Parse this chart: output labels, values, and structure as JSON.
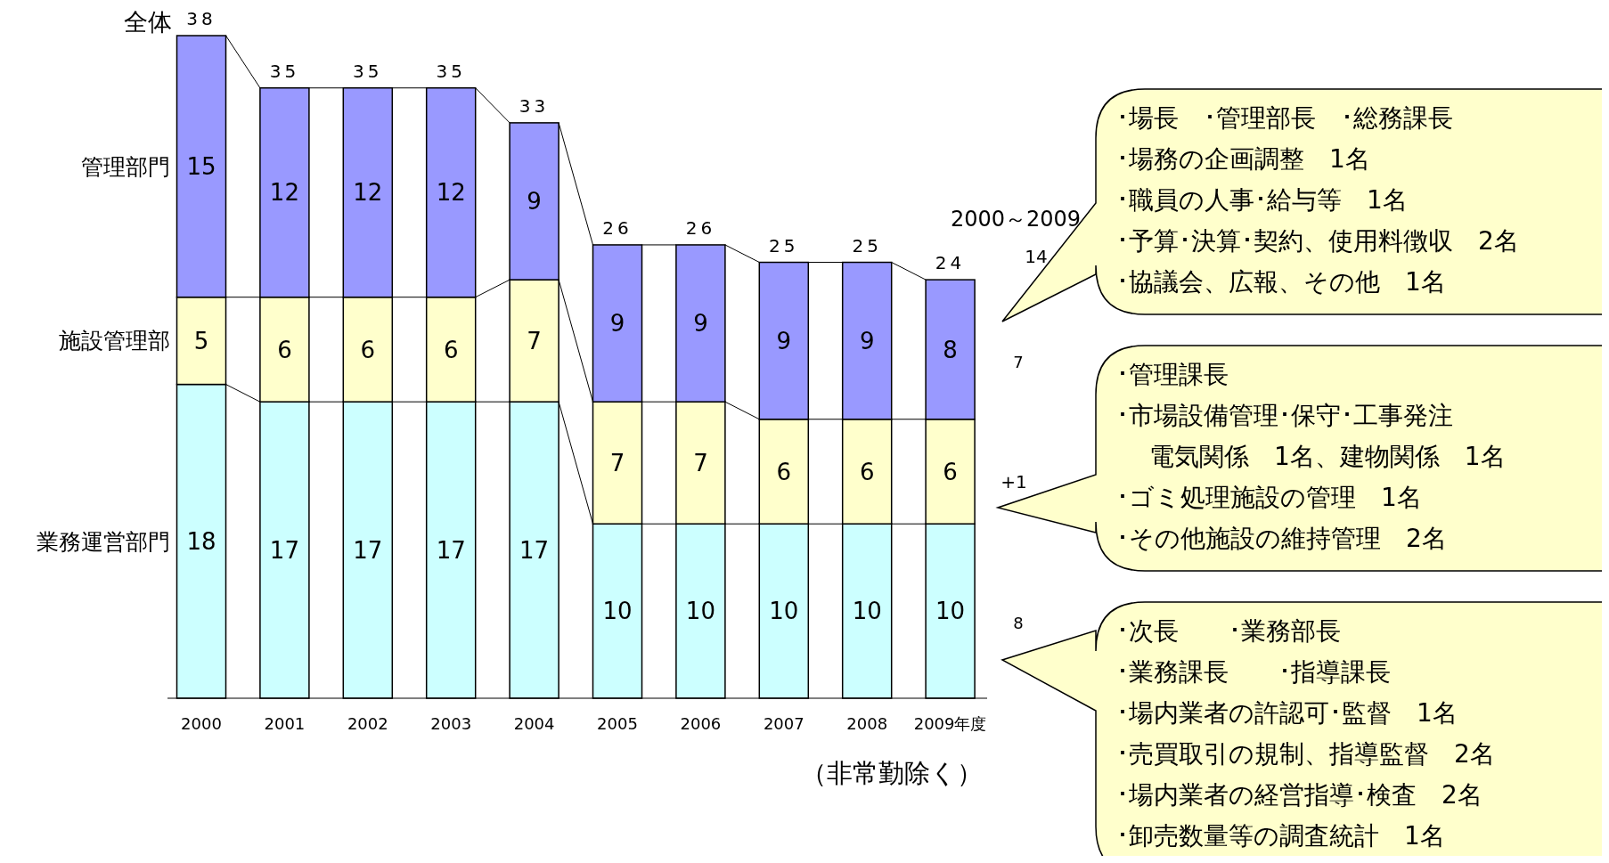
{
  "chart_data": {
    "type": "bar",
    "stacked": true,
    "data_labels": true,
    "categories": [
      "2000",
      "2001",
      "2002",
      "2003",
      "2004",
      "2005",
      "2006",
      "2007",
      "2008",
      "2009年度"
    ],
    "series": [
      {
        "name": "業務運営部門",
        "color": "#ccffff",
        "values": [
          18,
          17,
          17,
          17,
          17,
          10,
          10,
          10,
          10,
          10
        ]
      },
      {
        "name": "施設管理部",
        "color": "#ffffcc",
        "values": [
          5,
          6,
          6,
          6,
          7,
          7,
          7,
          6,
          6,
          6
        ]
      },
      {
        "name": "管理部門",
        "color": "#9999ff",
        "values": [
          15,
          12,
          12,
          12,
          9,
          9,
          9,
          9,
          9,
          8
        ]
      }
    ],
    "totals": [
      "38",
      "35",
      "35",
      "35",
      "33",
      "26",
      "26",
      "25",
      "25",
      "24"
    ],
    "annotations": [
      {
        "text": "全体",
        "x": "2000",
        "y": 38
      },
      "2000～2009",
      "14",
      "7",
      "+1",
      "8",
      "（非常勤除く）",
      "･場長　･管理部長　･総務課長",
      "･場務の企画調整　1名",
      "･職員の人事･給与等　1名",
      "･予算･決算･契約、使用料徴収　2名",
      "･協議会、広報、その他　1名",
      "･管理課長",
      "･市場設備管理･保守･工事発注",
      "　 電気関係　1名、建物関係　1名",
      "･ゴミ処理施設の管理　1名",
      "･その他施設の維持管理　2名",
      "･次長　　･業務部長",
      "･業務課長　　･指導課長",
      "･場内業者の許認可･監督　1名",
      "･売買取引の規制、指導監督　2名",
      "･場内業者の経営指導･検査　2名",
      "･卸売数量等の調査統計　1名"
    ]
  }
}
